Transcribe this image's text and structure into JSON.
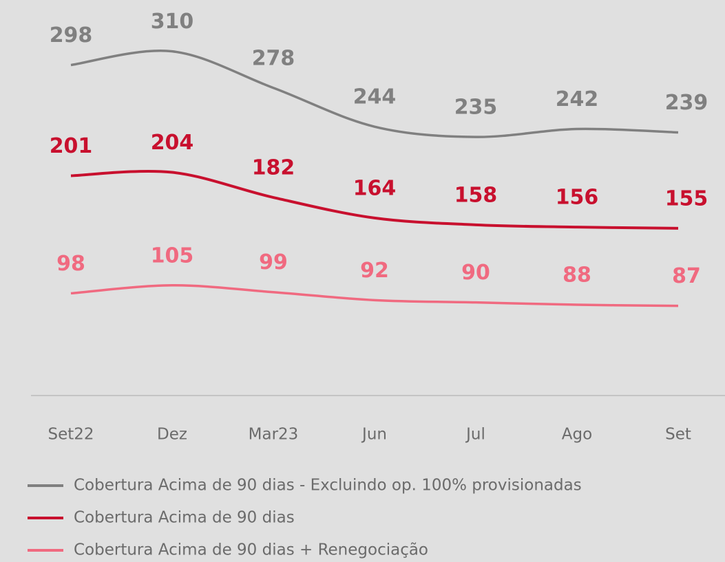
{
  "chart_data": {
    "type": "line",
    "categories": [
      "Set22",
      "Dez",
      "Mar23",
      "Jun",
      "Jul",
      "Ago",
      "Set"
    ],
    "ylim": [
      0,
      355
    ],
    "series": [
      {
        "name": "Cobertura Acima de 90 dias - Excluindo op. 100% provisionadas",
        "color": "#808080",
        "values": [
          298,
          310,
          278,
          244,
          235,
          242,
          239
        ]
      },
      {
        "name": "Cobertura Acima de 90 dias",
        "color": "#c8102e",
        "values": [
          201,
          204,
          182,
          164,
          158,
          156,
          155
        ]
      },
      {
        "name": "Cobertura Acima de 90 dias + Renegociação",
        "color": "#f06a80",
        "values": [
          98,
          105,
          99,
          92,
          90,
          88,
          87
        ]
      }
    ]
  }
}
